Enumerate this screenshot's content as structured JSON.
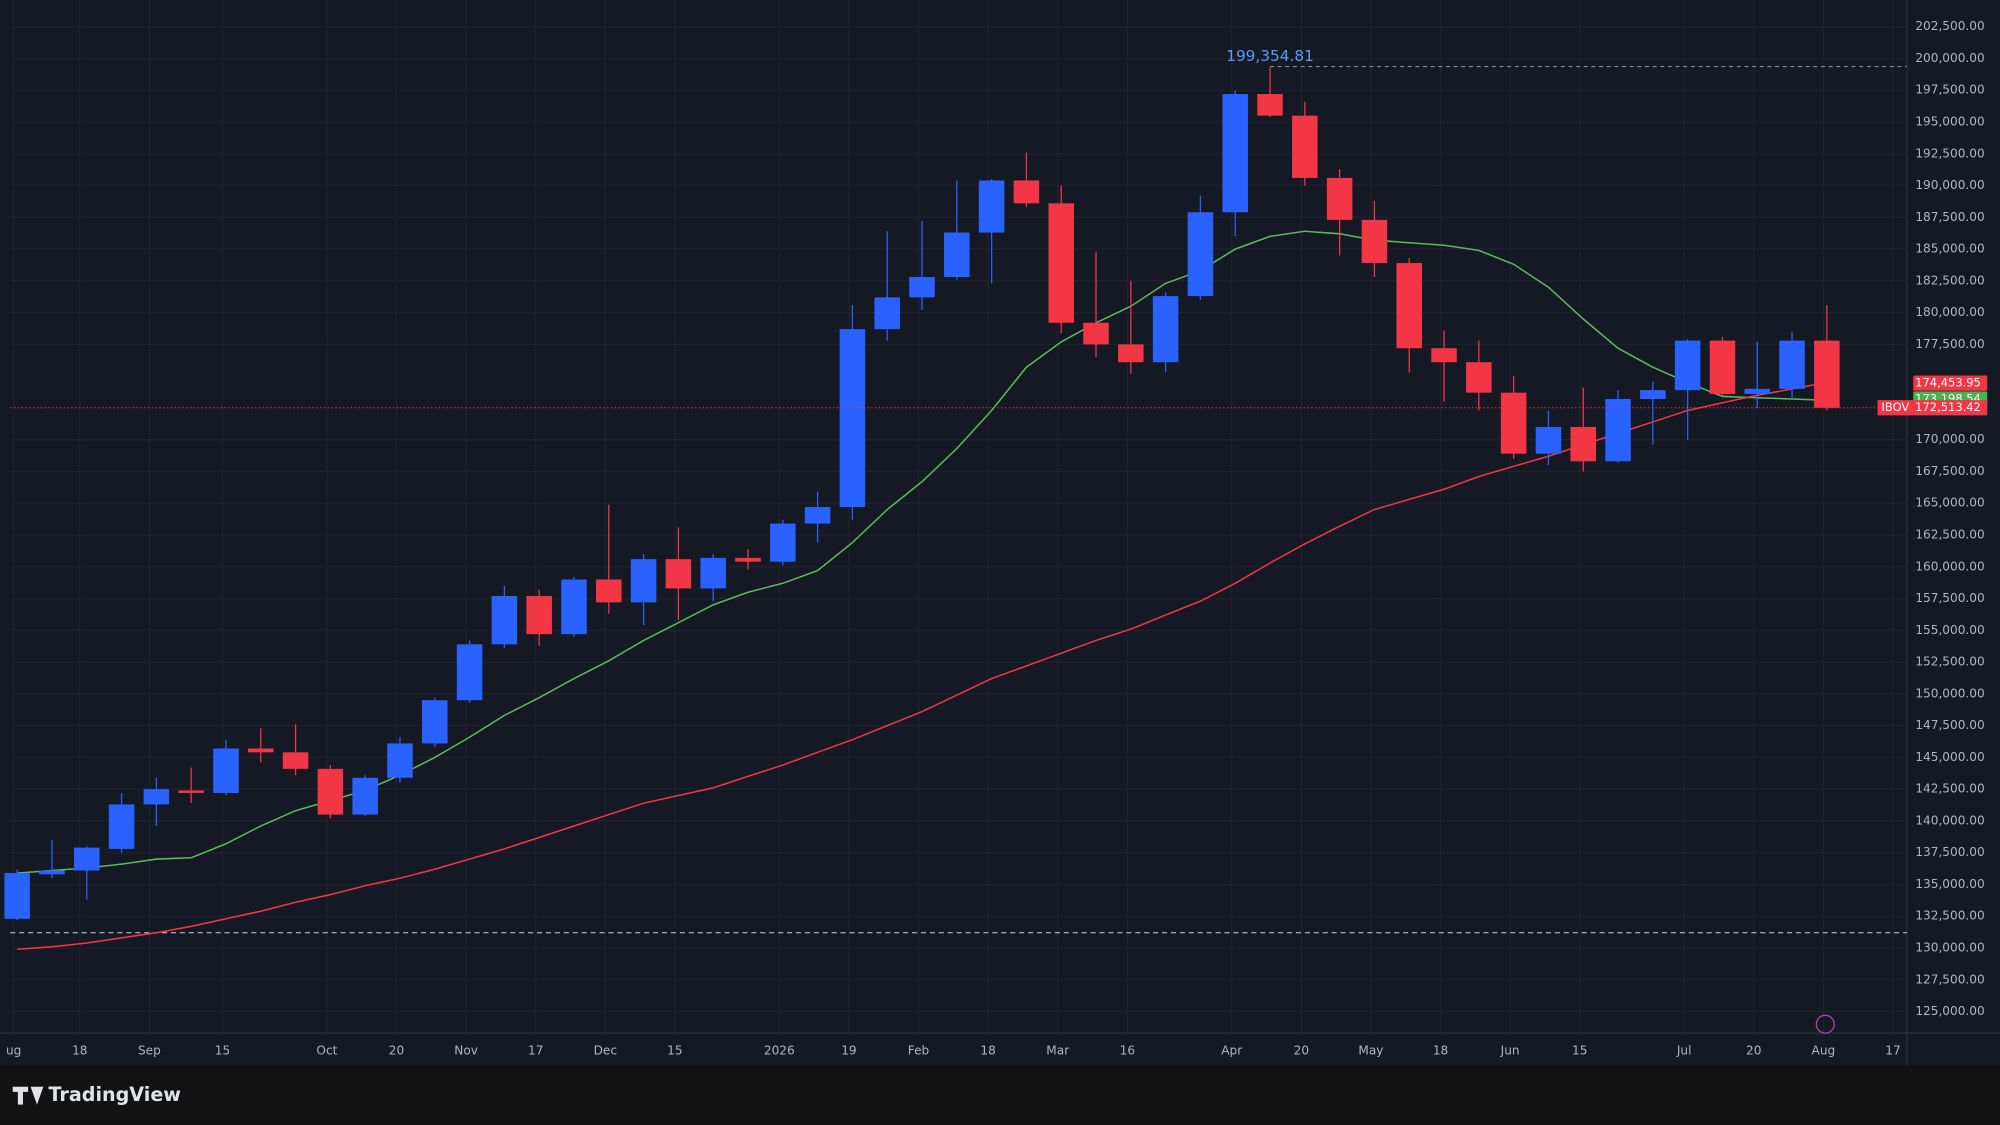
{
  "chart_data": {
    "type": "candlestick",
    "symbol": "IBOV",
    "brand": "TradingView",
    "xlim": [
      -0.2,
      54.3
    ],
    "xticks": [
      {
        "value": -0.1,
        "label": "ug"
      },
      {
        "value": 1.8,
        "label": "18"
      },
      {
        "value": 3.8,
        "label": "Sep"
      },
      {
        "value": 5.9,
        "label": "15"
      },
      {
        "value": 8.9,
        "label": "Oct"
      },
      {
        "value": 10.9,
        "label": "20"
      },
      {
        "value": 12.9,
        "label": "Nov"
      },
      {
        "value": 14.9,
        "label": "17"
      },
      {
        "value": 16.9,
        "label": "Dec"
      },
      {
        "value": 18.9,
        "label": "15"
      },
      {
        "value": 21.9,
        "label": "2026"
      },
      {
        "value": 23.9,
        "label": "19"
      },
      {
        "value": 25.9,
        "label": "Feb"
      },
      {
        "value": 27.9,
        "label": "18"
      },
      {
        "value": 29.9,
        "label": "Mar"
      },
      {
        "value": 31.9,
        "label": "16"
      },
      {
        "value": 34.9,
        "label": "Apr"
      },
      {
        "value": 36.9,
        "label": "20"
      },
      {
        "value": 38.9,
        "label": "May"
      },
      {
        "value": 40.9,
        "label": "18"
      },
      {
        "value": 42.9,
        "label": "Jun"
      },
      {
        "value": 44.9,
        "label": "15"
      },
      {
        "value": 47.9,
        "label": "Jul"
      },
      {
        "value": 49.9,
        "label": "20"
      },
      {
        "value": 51.9,
        "label": "Aug"
      },
      {
        "value": 53.9,
        "label": "17"
      }
    ],
    "ylim": [
      123300,
      204600
    ],
    "yticks": [
      {
        "value": 125000,
        "label": "125,000.00"
      },
      {
        "value": 127500,
        "label": "127,500.00"
      },
      {
        "value": 130000,
        "label": "130,000.00"
      },
      {
        "value": 132500,
        "label": "132,500.00"
      },
      {
        "value": 135000,
        "label": "135,000.00"
      },
      {
        "value": 137500,
        "label": "137,500.00"
      },
      {
        "value": 140000,
        "label": "140,000.00"
      },
      {
        "value": 142500,
        "label": "142,500.00"
      },
      {
        "value": 145000,
        "label": "145,000.00"
      },
      {
        "value": 147500,
        "label": "147,500.00"
      },
      {
        "value": 150000,
        "label": "150,000.00"
      },
      {
        "value": 152500,
        "label": "152,500.00"
      },
      {
        "value": 155000,
        "label": "155,000.00"
      },
      {
        "value": 157500,
        "label": "157,500.00"
      },
      {
        "value": 160000,
        "label": "160,000.00"
      },
      {
        "value": 162500,
        "label": "162,500.00"
      },
      {
        "value": 165000,
        "label": "165,000.00"
      },
      {
        "value": 167500,
        "label": "167,500.00"
      },
      {
        "value": 170000,
        "label": "170,000.00"
      },
      {
        "value": 177500,
        "label": "177,500.00"
      },
      {
        "value": 180000,
        "label": "180,000.00"
      },
      {
        "value": 182500,
        "label": "182,500.00"
      },
      {
        "value": 185000,
        "label": "185,000.00"
      },
      {
        "value": 187500,
        "label": "187,500.00"
      },
      {
        "value": 190000,
        "label": "190,000.00"
      },
      {
        "value": 192500,
        "label": "192,500.00"
      },
      {
        "value": 195000,
        "label": "195,000.00"
      },
      {
        "value": 197500,
        "label": "197,500.00"
      },
      {
        "value": 200000,
        "label": "200,000.00"
      },
      {
        "value": 202500,
        "label": "202,500.00"
      }
    ],
    "grid": true,
    "up_color": "#2962ff",
    "down_color": "#f23645",
    "open": [
      132300,
      135800,
      136100,
      137800,
      141300,
      142400,
      142200,
      145700,
      145400,
      144100,
      140500,
      143400,
      146100,
      149500,
      153900,
      157700,
      154700,
      159000,
      157200,
      160600,
      158300,
      160700,
      160400,
      163400,
      164700,
      178700,
      181200,
      182800,
      186300,
      190400,
      188600,
      179200,
      177500,
      176100,
      181300,
      187900,
      197200,
      195500,
      190600,
      187300,
      183900,
      177200,
      176100,
      173700,
      168900,
      171000,
      168300,
      173200,
      173900,
      177800,
      173600,
      174000,
      177800
    ],
    "high": [
      136200,
      138500,
      138000,
      142200,
      143400,
      144200,
      146400,
      147300,
      147600,
      144400,
      143600,
      146600,
      149700,
      154200,
      158500,
      158200,
      159200,
      164900,
      161000,
      163100,
      161000,
      161400,
      163700,
      165900,
      180600,
      186400,
      187200,
      190400,
      190500,
      192600,
      190000,
      184800,
      182500,
      181600,
      189200,
      197500,
      199354.81,
      196600,
      191300,
      188800,
      184300,
      178600,
      177800,
      175000,
      172300,
      174100,
      173900,
      174600,
      177900,
      178100,
      177700,
      178500,
      180600
    ],
    "low": [
      132200,
      135500,
      133800,
      137500,
      139600,
      141400,
      142000,
      144600,
      143600,
      140200,
      140400,
      143000,
      145800,
      149300,
      153600,
      153800,
      154500,
      156300,
      155400,
      155800,
      157300,
      159800,
      160100,
      161900,
      163700,
      177800,
      180200,
      182600,
      182300,
      188300,
      178400,
      176500,
      175200,
      175300,
      181000,
      186000,
      195400,
      190000,
      184500,
      182800,
      175300,
      173000,
      172300,
      168500,
      168000,
      167500,
      168200,
      169600,
      170000,
      173400,
      172500,
      173300,
      172300
    ],
    "close": [
      135900,
      136100,
      137900,
      141300,
      142500,
      142200,
      145700,
      145400,
      144100,
      140500,
      143400,
      146100,
      149500,
      153900,
      157700,
      154700,
      159000,
      157200,
      160600,
      158300,
      160700,
      160400,
      163400,
      164700,
      178700,
      181200,
      182800,
      186300,
      190400,
      188600,
      179200,
      177500,
      176100,
      181300,
      187900,
      197200,
      195500,
      190600,
      187300,
      183900,
      177200,
      176100,
      173700,
      168900,
      171000,
      168300,
      173200,
      173900,
      177800,
      173600,
      174000,
      177800,
      172513.42
    ],
    "series": [
      {
        "name": "MA fast",
        "color": "#5cb85c",
        "values": [
          135900,
          136100,
          136300,
          136600,
          137000,
          137100,
          138200,
          139600,
          140800,
          141600,
          142400,
          143600,
          145000,
          146600,
          148300,
          149700,
          151200,
          152600,
          154200,
          155600,
          157000,
          158000,
          158700,
          159700,
          161900,
          164500,
          166700,
          169300,
          172300,
          175700,
          177700,
          179200,
          180500,
          182300,
          183300,
          185000,
          186000,
          186400,
          186200,
          185700,
          185500,
          185300,
          184900,
          183800,
          182000,
          179500,
          177200,
          175700,
          174500,
          173400,
          173300,
          173200,
          173100
        ]
      },
      {
        "name": "MA slow",
        "color": "#f23645",
        "values": [
          129900,
          130100,
          130400,
          130800,
          131200,
          131700,
          132300,
          132900,
          133600,
          134200,
          134900,
          135500,
          136200,
          137000,
          137800,
          138700,
          139600,
          140500,
          141400,
          142000,
          142600,
          143500,
          144400,
          145400,
          146400,
          147500,
          148600,
          149900,
          151200,
          152200,
          153200,
          154200,
          155100,
          156200,
          157300,
          158700,
          160300,
          161800,
          163200,
          164500,
          165300,
          166100,
          167100,
          167900,
          168700,
          169600,
          170500,
          171400,
          172300,
          172900,
          173500,
          174000,
          174500
        ]
      }
    ],
    "hlines": [
      131200
    ],
    "annotations": [
      {
        "value": 199354.81,
        "label": "199,354.81"
      }
    ],
    "price_labels": [
      {
        "value": 174453.95,
        "label": "174,453.95",
        "color": "#f23645"
      },
      {
        "value": 173198.54,
        "label": "173,198.54",
        "color": "#4caf50"
      },
      {
        "value": 172513.42,
        "label": "172,513.42",
        "color": "#f23645"
      }
    ]
  }
}
